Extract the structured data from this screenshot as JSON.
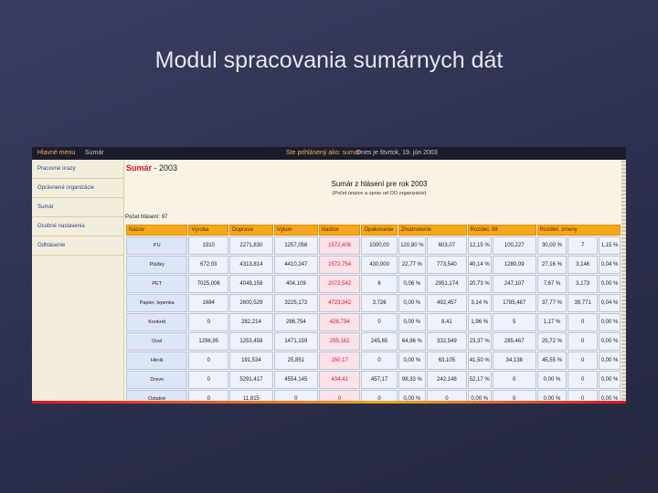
{
  "slide": {
    "title": "Modul spracovania sumárnych dát"
  },
  "screenshot": {
    "topbar": {
      "home": "Hlavné menu",
      "section": "Sumár",
      "user": "Ste prihlásený ako: sumar",
      "date": "Dnes je štvrtok, 19. jún 2003"
    },
    "sidebar": [
      "Pracovné úrazy",
      "Oprávnené organizácie",
      "Sumár",
      "Osobné nastavenia",
      "Odhlásenie"
    ],
    "heading_red": "Sumár",
    "heading_rest": " - 2003",
    "report_title": "Sumár z hlásení pre rok 2003",
    "report_sub": "(Počet úrazov a úprav od OO organizácie)",
    "count": "Počet hlásení: 97",
    "columns": [
      "Názov",
      "Výroba",
      "Doprava",
      "Výkon",
      "Nadzor",
      "Opakovanie",
      "Zhodnotenie",
      "Rozdiel. 98",
      "Rozdiel. zmeny",
      ""
    ],
    "rows": [
      [
        "PU",
        "1910",
        "2271,830",
        "1257,056",
        "1572,406",
        "1000,00",
        "120,80 %",
        "603,07",
        "12,15 %",
        "100,227",
        "30,00 %",
        "7",
        "1,15 %"
      ],
      [
        "Plášky",
        "672,03",
        "4313,814",
        "4410,247",
        "1572,754",
        "430,000",
        "22,77 %",
        "773,540",
        "40,14 %",
        "1280,09",
        "27,16 %",
        "3,146",
        "0,04 %"
      ],
      [
        "PET",
        "7025,006",
        "4049,158",
        "404,109",
        "2072,542",
        "6",
        "0,06 %",
        "2951,174",
        "20,73 %",
        "247,107",
        "7,67 %",
        "3,173",
        "0,00 %"
      ],
      [
        "Papier, lepenka",
        "1684",
        "2600,529",
        "3225,172",
        "4723,342",
        "3,726",
        "0,00 %",
        "492,457",
        "3,14 %",
        "1785,487",
        "37,77 %",
        "39,771",
        "0,04 %"
      ],
      [
        "Konkrét",
        "0",
        "282,214",
        "286,754",
        "428,734",
        "0",
        "0,00 %",
        "8,41",
        "1,96 %",
        "5",
        "1,17 %",
        "0",
        "0,00 %"
      ],
      [
        "Ocel",
        "1296,95",
        "1253,458",
        "1471,159",
        "295,162",
        "245,65",
        "64,96 %",
        "332,549",
        "23,37 %",
        "285,467",
        "25,72 %",
        "0",
        "0,00 %"
      ],
      [
        "Hliník",
        "0",
        "191,534",
        "25,851",
        "150,17",
        "0",
        "0,00 %",
        "63,105",
        "41,50 %",
        "34,138",
        "45,55 %",
        "0",
        "0,00 %"
      ],
      [
        "Drevo",
        "0",
        "5291,417",
        "4554,145",
        "434,41",
        "457,17",
        "98,33 %",
        "242,148",
        "52,17 %",
        "0",
        "0,00 %",
        "0",
        "0,00 %"
      ],
      [
        "Ostatné",
        "0",
        "11,815",
        "0",
        "0",
        "0",
        "0,00 %",
        "0",
        "0,00 %",
        "0",
        "0,00 %",
        "0",
        "0,00 %"
      ]
    ]
  },
  "colors": {
    "accent": "#f5a81c",
    "highlight": "#e0162b",
    "background": "#2c2f4d"
  }
}
